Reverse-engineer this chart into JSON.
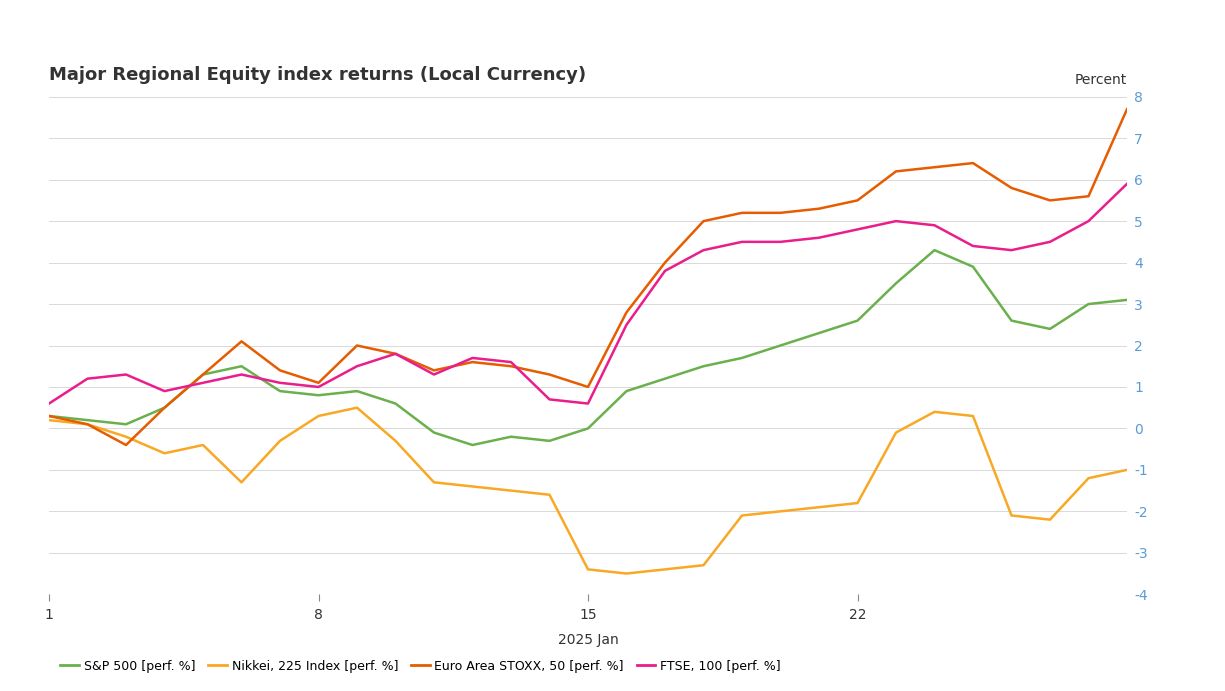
{
  "title": "Major Regional Equity index returns (Local Currency)",
  "ylabel": "Percent",
  "xlabel": "2025 Jan",
  "xlim": [
    1,
    29
  ],
  "ylim": [
    -4,
    8
  ],
  "yticks": [
    -4,
    -3,
    -2,
    -1,
    0,
    1,
    2,
    3,
    4,
    5,
    6,
    7,
    8
  ],
  "xticks": [
    1,
    8,
    15,
    22
  ],
  "background_color": "#ffffff",
  "grid_color": "#d9d9d9",
  "series": [
    {
      "label": "S&P 500 [perf. %]",
      "color": "#6ab04c",
      "x": [
        1,
        2,
        3,
        4,
        5,
        6,
        7,
        8,
        9,
        10,
        11,
        12,
        13,
        14,
        15,
        16,
        17,
        18,
        19,
        20,
        21,
        22,
        23,
        24,
        25,
        26,
        27,
        28,
        29
      ],
      "y": [
        0.3,
        0.2,
        0.1,
        0.5,
        1.3,
        1.5,
        0.9,
        0.8,
        0.9,
        0.6,
        -0.1,
        -0.4,
        -0.2,
        -0.3,
        0.0,
        0.9,
        1.2,
        1.5,
        1.7,
        2.0,
        2.3,
        2.6,
        3.5,
        4.3,
        3.9,
        2.6,
        2.4,
        3.0,
        3.1
      ]
    },
    {
      "label": "Nikkei, 225 Index [perf. %]",
      "color": "#f9a825",
      "x": [
        1,
        2,
        3,
        4,
        5,
        6,
        7,
        8,
        9,
        10,
        11,
        12,
        13,
        14,
        15,
        16,
        17,
        18,
        19,
        20,
        21,
        22,
        23,
        24,
        25,
        26,
        27,
        28,
        29
      ],
      "y": [
        0.2,
        0.1,
        -0.2,
        -0.6,
        -0.4,
        -1.3,
        -0.3,
        0.3,
        0.5,
        -0.3,
        -1.3,
        -1.4,
        -1.5,
        -1.6,
        -3.4,
        -3.5,
        -3.4,
        -3.3,
        -2.1,
        -2.0,
        -1.9,
        -1.8,
        -0.1,
        0.4,
        0.3,
        -2.1,
        -2.2,
        -1.2,
        -1.0
      ]
    },
    {
      "label": "Euro Area STOXX, 50 [perf. %]",
      "color": "#e65c00",
      "x": [
        1,
        2,
        3,
        4,
        5,
        6,
        7,
        8,
        9,
        10,
        11,
        12,
        13,
        14,
        15,
        16,
        17,
        18,
        19,
        20,
        21,
        22,
        23,
        24,
        25,
        26,
        27,
        28,
        29
      ],
      "y": [
        0.3,
        0.1,
        -0.4,
        0.5,
        1.3,
        2.1,
        1.4,
        1.1,
        2.0,
        1.8,
        1.4,
        1.6,
        1.5,
        1.3,
        1.0,
        2.8,
        4.0,
        5.0,
        5.2,
        5.2,
        5.3,
        5.5,
        6.2,
        6.3,
        6.4,
        5.8,
        5.5,
        5.6,
        7.7
      ]
    },
    {
      "label": "FTSE, 100 [perf. %]",
      "color": "#e91e8c",
      "x": [
        1,
        2,
        3,
        4,
        5,
        6,
        7,
        8,
        9,
        10,
        11,
        12,
        13,
        14,
        15,
        16,
        17,
        18,
        19,
        20,
        21,
        22,
        23,
        24,
        25,
        26,
        27,
        28,
        29
      ],
      "y": [
        0.6,
        1.2,
        1.3,
        0.9,
        1.1,
        1.3,
        1.1,
        1.0,
        1.5,
        1.8,
        1.3,
        1.7,
        1.6,
        0.7,
        0.6,
        2.5,
        3.8,
        4.3,
        4.5,
        4.5,
        4.6,
        4.8,
        5.0,
        4.9,
        4.4,
        4.3,
        4.5,
        5.0,
        5.9
      ]
    }
  ],
  "legend_items": [
    "S&P 500 [perf. %]",
    "Nikkei, 225 Index [perf. %]",
    "Euro Area STOXX, 50 [perf. %]",
    "FTSE, 100 [perf. %]"
  ],
  "legend_colors": [
    "#6ab04c",
    "#f9a825",
    "#e65c00",
    "#e91e8c"
  ],
  "title_fontsize": 13,
  "tick_label_color": "#5b9bd5",
  "axis_label_color": "#555555",
  "tick_fontsize": 10,
  "xlabel_fontsize": 10,
  "ylabel_fontsize": 10,
  "linewidth": 1.8
}
